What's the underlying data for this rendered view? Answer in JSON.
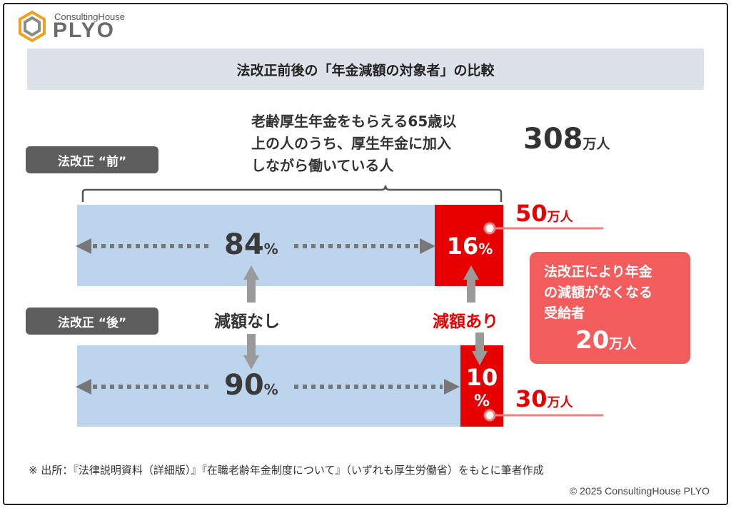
{
  "logo": {
    "small": "ConsultingHouse",
    "big": "PLYO"
  },
  "title": "法改正前後の「年金減額の対象者」の比較",
  "description_lines": [
    "老齢厚生年金をもらえる65歳以",
    "上の人のうち、厚生年金に加入",
    "しながら働いている人"
  ],
  "total": {
    "value": "308",
    "unit": "万人"
  },
  "labels": {
    "no_reduction": "減額なし",
    "reduction": "減額あり"
  },
  "box": {
    "lines": [
      "法改正により年金",
      "の減額がなくなる",
      "受給者"
    ],
    "value": "20",
    "unit": "万人"
  },
  "source": "※ 出所：『法律説明資料（詳細版）』『在職老齢年金制度について』（いずれも厚生労働省）をもとに筆者作成",
  "copyright": "© 2025 ConsultingHouse PLYO",
  "colors": {
    "bar_blue": "#bdd5ec",
    "red": "#e60000",
    "tag_gray": "#5d5d5d",
    "box_red": "#f25c5c"
  },
  "chart_data": {
    "type": "bar",
    "orientation": "horizontal-stacked-100",
    "categories": [
      "法改正 “前”",
      "法改正 “後”"
    ],
    "series": [
      {
        "name": "減額なし",
        "values": [
          84,
          90
        ],
        "unit": "%"
      },
      {
        "name": "減額あり",
        "values": [
          16,
          10
        ],
        "unit": "%"
      }
    ],
    "reduction_counts": [
      {
        "value": "50",
        "unit": "万人"
      },
      {
        "value": "30",
        "unit": "万人"
      }
    ],
    "percent_unit": "%"
  }
}
